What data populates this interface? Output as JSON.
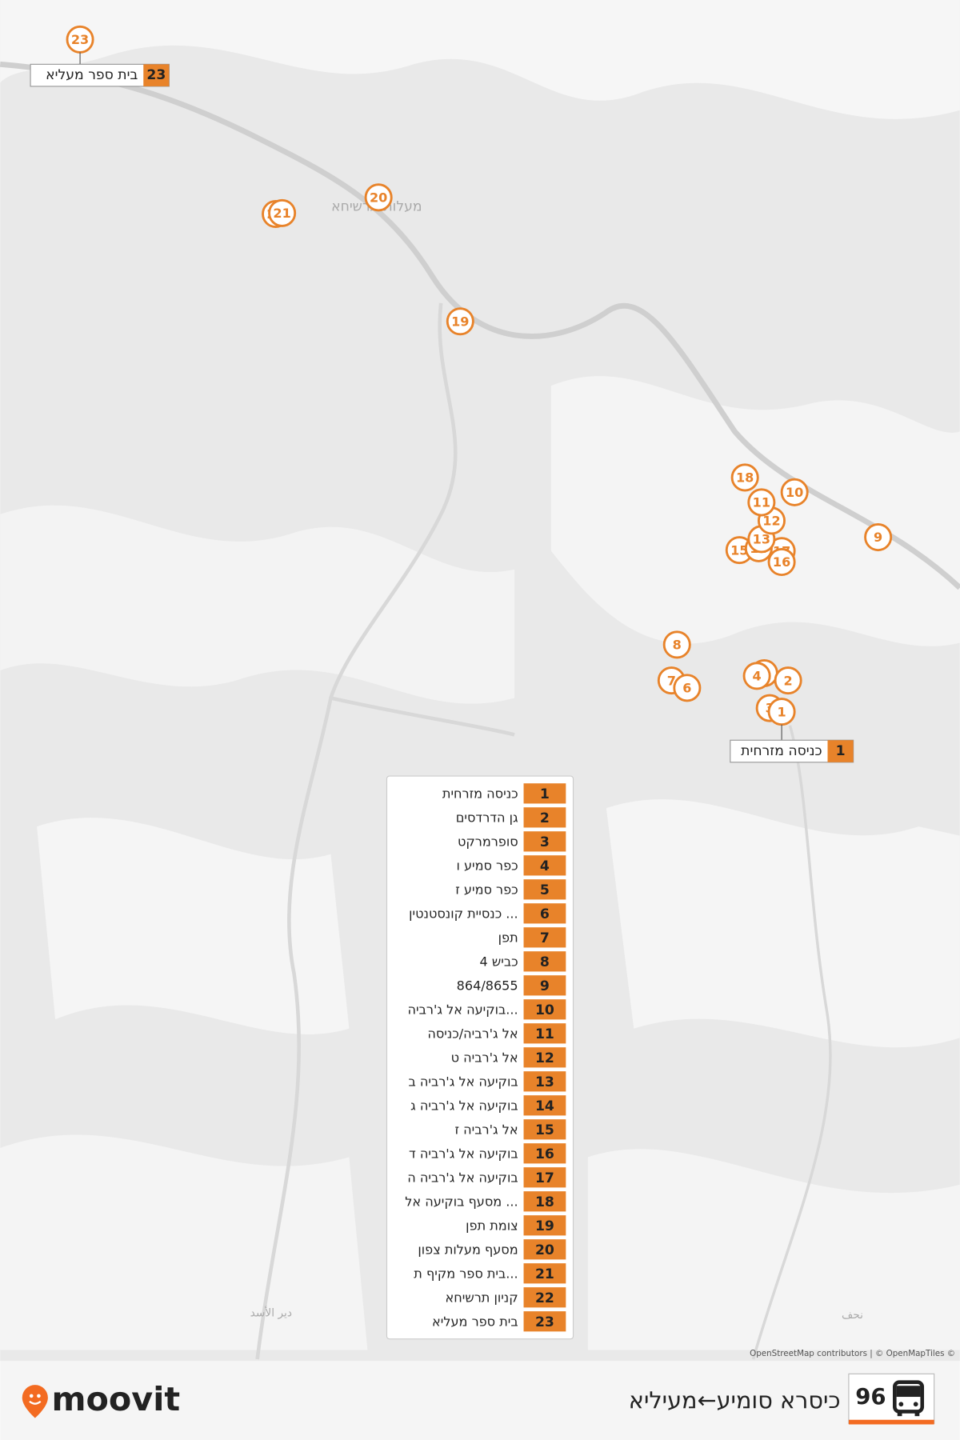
{
  "header": {
    "route_number": 96,
    "route_title": "כיסרא סומיע←מעיליא",
    "logo": "moovit"
  },
  "map_labels": [
    "מעלות תרשיחא",
    "دير الأسد",
    "نحف"
  ],
  "attribution": "OpenStreetMap contributors | © OpenMapTiles ©",
  "stops": [
    {
      "number": 1,
      "name": "כניסה מזרחית"
    },
    {
      "number": 2,
      "name": "גן הדרדסים"
    },
    {
      "number": 3,
      "name": "סופרמרקט"
    },
    {
      "number": 4,
      "name": "כפר סמיע ו"
    },
    {
      "number": 5,
      "name": "כפר סמיע ז"
    },
    {
      "number": 6,
      "name": "כנסיית קונסטנטין ..."
    },
    {
      "number": 7,
      "name": "תפן"
    },
    {
      "number": 8,
      "name": "כביש 4"
    },
    {
      "number": 9,
      "name": "864/8655"
    },
    {
      "number": 10,
      "name": "בוקיעה אל ג'רביה..."
    },
    {
      "number": 11,
      "name": "אל ג'רביה/כניסה"
    },
    {
      "number": 12,
      "name": "אל ג'רביה ט"
    },
    {
      "number": 13,
      "name": "בוקיעה אל ג'רביה ב"
    },
    {
      "number": 14,
      "name": "בוקיעה אל ג'רביה ג"
    },
    {
      "number": 15,
      "name": "אל ג'רביה ז"
    },
    {
      "number": 16,
      "name": "בוקיעה אל ג'רביה ד"
    },
    {
      "number": 17,
      "name": "בוקיעה אל ג'רביה ה"
    },
    {
      "number": 18,
      "name": "מסעף בוקיעה אל ..."
    },
    {
      "number": 19,
      "name": "צומת תפן"
    },
    {
      "number": 20,
      "name": "מסעף מעלות צפון"
    },
    {
      "number": 21,
      "name": "בית ספר מקיף ת..."
    },
    {
      "number": 22,
      "name": "קניון תרשיחא"
    },
    {
      "number": 23,
      "name": "בית ספר מעליא"
    }
  ]
}
